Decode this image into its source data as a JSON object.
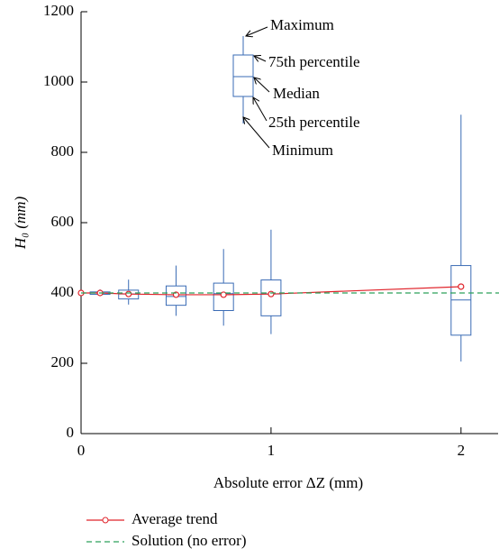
{
  "chart_data": {
    "type": "box",
    "x_label": "Absolute error ΔZ (mm)",
    "y_label": "H₀ (mm)",
    "xlim": [
      0,
      2.2
    ],
    "ylim": [
      0,
      1200
    ],
    "xticks": [
      0,
      1,
      2
    ],
    "yticks": [
      0,
      200,
      400,
      600,
      800,
      1000,
      1200
    ],
    "boxes": {
      "color": "#3a6bb5",
      "x": [
        0.1,
        0.25,
        0.5,
        0.75,
        1,
        2
      ],
      "min": [
        392,
        367,
        335,
        307,
        283,
        205
      ],
      "q1": [
        396,
        383,
        365,
        350,
        335,
        280
      ],
      "median": [
        400,
        397,
        390,
        398,
        397,
        380
      ],
      "q3": [
        403,
        408,
        420,
        428,
        437,
        478
      ],
      "max": [
        410,
        438,
        478,
        525,
        580,
        907
      ]
    },
    "series": [
      {
        "name": "Average trend",
        "color": "#e0242b",
        "line_style": "solid",
        "marker": "circle",
        "x": [
          0,
          0.1,
          0.25,
          0.5,
          0.75,
          1,
          2
        ],
        "values": [
          400,
          400,
          397,
          395,
          395,
          397,
          418
        ]
      },
      {
        "name": "Solution (no error)",
        "color": "#2ca05a",
        "line_style": "dashed",
        "marker": "none",
        "x": [
          0,
          2.2
        ],
        "values": [
          400,
          400
        ]
      }
    ],
    "annotations": [
      "Maximum",
      "75th percentile",
      "Median",
      "25th percentile",
      "Minimum"
    ]
  }
}
